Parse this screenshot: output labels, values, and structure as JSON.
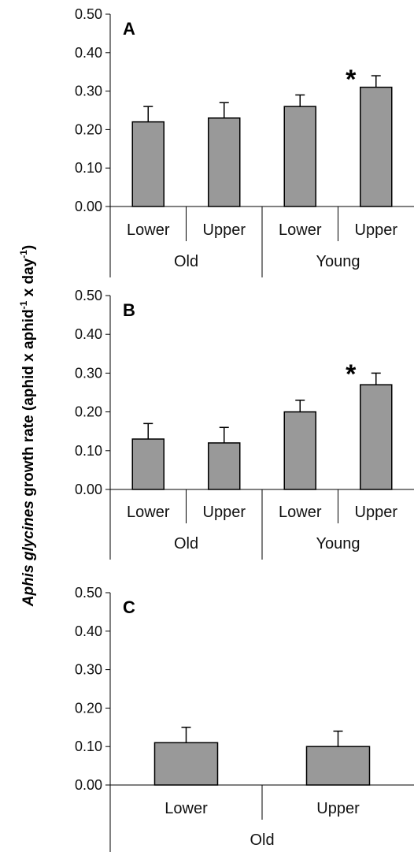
{
  "y_axis_label_prefix": "Aphis glycines",
  "y_axis_label_rest": " growth rate (aphid x aphid",
  "y_axis_label_sup1": "-1",
  "y_axis_label_mid": " x day",
  "y_axis_label_sup2": "-1",
  "y_axis_label_end": ")",
  "colors": {
    "bar_fill": "#999999",
    "bar_stroke": "#000000",
    "axis": "#000000"
  },
  "chart_data": [
    {
      "type": "bar",
      "panel": "A",
      "categories": [
        "Lower",
        "Upper",
        "Lower",
        "Upper"
      ],
      "groups": [
        "Old",
        "Old",
        "Young",
        "Young"
      ],
      "group_labels": [
        "Old",
        "Young"
      ],
      "values": [
        0.22,
        0.23,
        0.26,
        0.31
      ],
      "errors": [
        0.04,
        0.04,
        0.03,
        0.03
      ],
      "significance": [
        "",
        "",
        "",
        "*"
      ],
      "ylim": [
        0,
        0.5
      ],
      "yticks": [
        "0.00",
        "0.10",
        "0.20",
        "0.30",
        "0.40",
        "0.50"
      ]
    },
    {
      "type": "bar",
      "panel": "B",
      "categories": [
        "Lower",
        "Upper",
        "Lower",
        "Upper"
      ],
      "groups": [
        "Old",
        "Old",
        "Young",
        "Young"
      ],
      "group_labels": [
        "Old",
        "Young"
      ],
      "values": [
        0.13,
        0.12,
        0.2,
        0.27
      ],
      "errors": [
        0.04,
        0.04,
        0.03,
        0.03
      ],
      "significance": [
        "",
        "",
        "",
        "*"
      ],
      "ylim": [
        0,
        0.5
      ],
      "yticks": [
        "0.00",
        "0.10",
        "0.20",
        "0.30",
        "0.40",
        "0.50"
      ]
    },
    {
      "type": "bar",
      "panel": "C",
      "categories": [
        "Lower",
        "Upper"
      ],
      "groups": [
        "Old",
        "Old"
      ],
      "group_labels": [
        "Old"
      ],
      "values": [
        0.11,
        0.1
      ],
      "errors": [
        0.04,
        0.04
      ],
      "significance": [
        "",
        ""
      ],
      "ylim": [
        0,
        0.5
      ],
      "yticks": [
        "0.00",
        "0.10",
        "0.20",
        "0.30",
        "0.40",
        "0.50"
      ]
    }
  ]
}
